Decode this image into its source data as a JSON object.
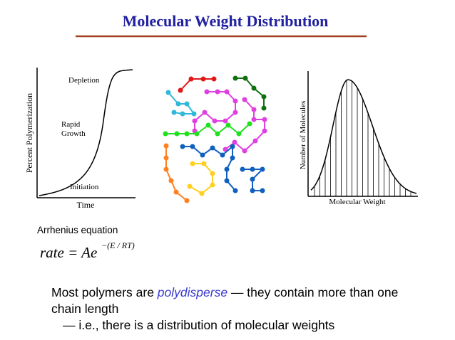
{
  "title": "Molecular Weight Distribution",
  "figures": {
    "polymerization": {
      "y_label": "Percent Polymerization",
      "x_label": "Time",
      "annotations": [
        "Depletion",
        "Rapid",
        "Growth",
        "Initiation"
      ]
    },
    "distribution": {
      "y_label": "Number of Molecules",
      "x_label": "Molecular Weight"
    }
  },
  "equation": {
    "caption": "Arrhenius equation",
    "base": "rate = Ae",
    "exponent": "−(E / RT)"
  },
  "bullets": [
    {
      "parts": [
        "Most polymers are ",
        "polydisperse",
        " — they contain more than one chain length"
      ]
    },
    {
      "parts": [
        "— i.e., there is a distribution of molecular weights"
      ]
    }
  ]
}
